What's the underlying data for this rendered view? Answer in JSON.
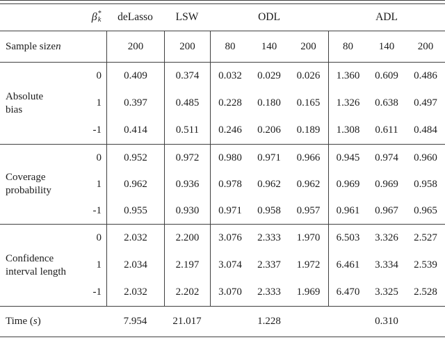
{
  "colors": {
    "rule": "#3f3f3f",
    "text": "#1c1c1c",
    "background": "#ffffff"
  },
  "table": {
    "header": {
      "beta_symbol": "β",
      "beta_sup": "*",
      "beta_sub": "k",
      "method_delasso": "deLasso",
      "method_lsw": "LSW",
      "method_odl": "ODL",
      "method_adl": "ADL"
    },
    "sample_size": {
      "label_text": "Sample size ",
      "label_italic": "n",
      "values": [
        "200",
        "200",
        "80",
        "140",
        "200",
        "80",
        "140",
        "200"
      ]
    },
    "sections": [
      {
        "label_line1": "Absolute",
        "label_line2": "bias",
        "rows": [
          {
            "beta": "0",
            "values": [
              "0.409",
              "0.374",
              "0.032",
              "0.029",
              "0.026",
              "1.360",
              "0.609",
              "0.486"
            ]
          },
          {
            "beta": "1",
            "values": [
              "0.397",
              "0.485",
              "0.228",
              "0.180",
              "0.165",
              "1.326",
              "0.638",
              "0.497"
            ]
          },
          {
            "beta": "-1",
            "values": [
              "0.414",
              "0.511",
              "0.246",
              "0.206",
              "0.189",
              "1.308",
              "0.611",
              "0.484"
            ]
          }
        ]
      },
      {
        "label_line1": "Coverage",
        "label_line2": "probability",
        "rows": [
          {
            "beta": "0",
            "values": [
              "0.952",
              "0.972",
              "0.980",
              "0.971",
              "0.966",
              "0.945",
              "0.974",
              "0.960"
            ]
          },
          {
            "beta": "1",
            "values": [
              "0.962",
              "0.936",
              "0.978",
              "0.962",
              "0.962",
              "0.969",
              "0.969",
              "0.958"
            ]
          },
          {
            "beta": "-1",
            "values": [
              "0.955",
              "0.930",
              "0.971",
              "0.958",
              "0.957",
              "0.961",
              "0.967",
              "0.965"
            ]
          }
        ]
      },
      {
        "label_line1": "Confidence",
        "label_line2": "interval length",
        "rows": [
          {
            "beta": "0",
            "values": [
              "2.032",
              "2.200",
              "3.076",
              "2.333",
              "1.970",
              "6.503",
              "3.326",
              "2.527"
            ]
          },
          {
            "beta": "1",
            "values": [
              "2.034",
              "2.197",
              "3.074",
              "2.337",
              "1.972",
              "6.461",
              "3.334",
              "2.539"
            ]
          },
          {
            "beta": "-1",
            "values": [
              "2.032",
              "2.202",
              "3.070",
              "2.333",
              "1.969",
              "6.470",
              "3.325",
              "2.528"
            ]
          }
        ]
      }
    ],
    "time": {
      "label_text": "Time (",
      "label_italic": "s",
      "label_close": ")",
      "values": [
        "7.954",
        "21.017",
        "1.228",
        "0.310"
      ]
    }
  }
}
